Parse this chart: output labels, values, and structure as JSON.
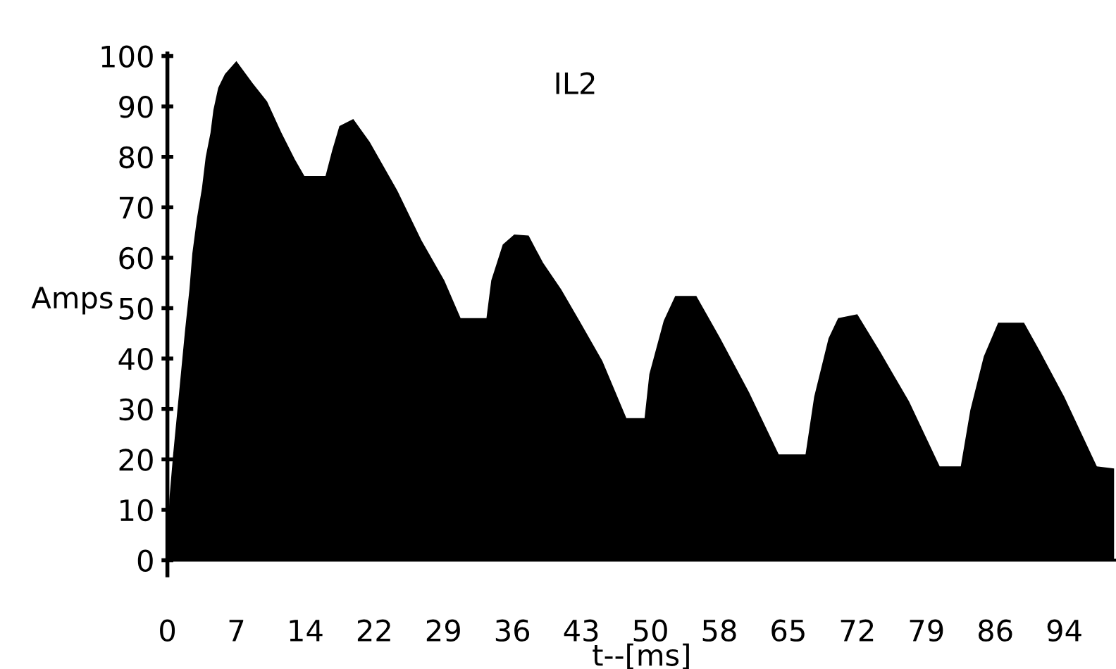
{
  "chart_data": {
    "type": "area",
    "title": "IL2",
    "xlabel": "t--[ms]",
    "ylabel": "Amps",
    "x": [
      0,
      0.2,
      0.6,
      1.85,
      2.3,
      2.6,
      3.1,
      3.6,
      4.0,
      4.5,
      4.8,
      5.3,
      6.0,
      7.2,
      8.9,
      10.4,
      11.9,
      13.3,
      14.3,
      16.5,
      17.2,
      17.95,
      19.4,
      21.1,
      24,
      26.5,
      28.9,
      30.6,
      33.3,
      33.8,
      35,
      36.2,
      37.7,
      39.2,
      41.1,
      43,
      45.4,
      47.9,
      49.8,
      50.3,
      51.8,
      53.0,
      55.2,
      57.7,
      60.7,
      63.8,
      66.6,
      67.5,
      69,
      70,
      72,
      74.4,
      77.4,
      80.6,
      82.8,
      83.8,
      85.2,
      86.7,
      89.4,
      91.1,
      93.6,
      97,
      98.8
    ],
    "series": [
      {
        "color": "#000000",
        "values": [
          0,
          12,
          21,
          45.7,
          53.7,
          60.8,
          68,
          73.7,
          80,
          84.8,
          89.3,
          93.7,
          96.4,
          99,
          94.6,
          91,
          84.8,
          79.5,
          76.2,
          76.2,
          81.3,
          86.1,
          87.5,
          83,
          73.3,
          63.5,
          55.5,
          48,
          48,
          55.5,
          62.6,
          64.6,
          64.4,
          59,
          53.7,
          47.5,
          39.5,
          28.2,
          28.2,
          36.9,
          47.5,
          52.4,
          52.4,
          44,
          33.3,
          21,
          21,
          32.4,
          44,
          48,
          48.8,
          41.3,
          31.5,
          18.6,
          18.6,
          29.8,
          40.4,
          47.1,
          47.1,
          41.3,
          32.4,
          18.6,
          18.2
        ]
      }
    ],
    "xlim": [
      0,
      99
    ],
    "ylim": [
      -3,
      100.5
    ],
    "xticks": [
      0,
      {
        "value": 7.2,
        "label": "7"
      },
      {
        "value": 14.4,
        "label": "14"
      },
      {
        "value": 21.6,
        "label": "22"
      },
      {
        "value": 28.8,
        "label": "29"
      },
      {
        "value": 36,
        "label": "36"
      },
      {
        "value": 43.2,
        "label": "43"
      },
      {
        "value": 50.4,
        "label": "50"
      },
      {
        "value": 57.6,
        "label": "58"
      },
      {
        "value": 64.8,
        "label": "65"
      },
      {
        "value": 72,
        "label": "72"
      },
      {
        "value": 79.2,
        "label": "79"
      },
      {
        "value": 86.4,
        "label": "86"
      },
      {
        "value": 93.6,
        "label": "94"
      }
    ],
    "yticks": [
      0,
      10,
      20,
      30,
      40,
      50,
      60,
      70,
      80,
      90,
      100
    ],
    "grid": false,
    "legend": false
  }
}
